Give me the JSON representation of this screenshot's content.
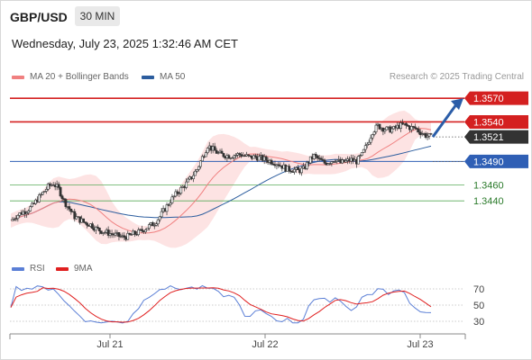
{
  "header": {
    "symbol": "GBP/USD",
    "timeframe": "30 MIN",
    "datetime": "Wednesday, July 23, 2025 1:32:46 AM CET",
    "credit": "Research © 2025 Trading Central"
  },
  "legend": {
    "ma20": "MA 20 + Bollinger Bands",
    "ma50": "MA 50",
    "ma20_color": "#f08080",
    "ma50_color": "#2c5d9e"
  },
  "rsi_legend": {
    "rsi": "RSI",
    "ma9": "9MA",
    "rsi_color": "#5b7fd6",
    "ma9_color": "#e02020"
  },
  "colors": {
    "resistance": "#d42020",
    "support": "#2f5fb5",
    "target_line": "#5aab5a",
    "target_text": "#2a7a2a",
    "current": "#333333",
    "arrow": "#2b5da8",
    "band_fill": "#fde0e0"
  },
  "chart_data": [
    {
      "type": "candlestick",
      "title": "",
      "x_tick_labels": [
        "Jul 21",
        "Jul 22",
        "Jul 23"
      ],
      "ylim": [
        1.3365,
        1.3585
      ],
      "levels": [
        {
          "value": 1.357,
          "label": "1.3570",
          "kind": "resistance"
        },
        {
          "value": 1.354,
          "label": "1.3540",
          "kind": "resistance"
        },
        {
          "value": 1.3521,
          "label": "1.3521",
          "kind": "current"
        },
        {
          "value": 1.349,
          "label": "1.3490",
          "kind": "support"
        },
        {
          "value": 1.346,
          "label": "1.3460",
          "kind": "target"
        },
        {
          "value": 1.344,
          "label": "1.3440",
          "kind": "target"
        }
      ],
      "close_path": [
        1.3415,
        1.3421,
        1.3425,
        1.3428,
        1.3433,
        1.3442,
        1.345,
        1.3458,
        1.3462,
        1.3455,
        1.344,
        1.343,
        1.342,
        1.3416,
        1.3412,
        1.341,
        1.3405,
        1.3402,
        1.34,
        1.3398,
        1.3396,
        1.3394,
        1.3395,
        1.3398,
        1.34,
        1.3404,
        1.3408,
        1.3412,
        1.342,
        1.343,
        1.344,
        1.3448,
        1.3455,
        1.3462,
        1.347,
        1.348,
        1.3495,
        1.351,
        1.3505,
        1.35,
        1.3498,
        1.3497,
        1.3498,
        1.3499,
        1.3497,
        1.3495,
        1.3496,
        1.3494,
        1.3492,
        1.349,
        1.3488,
        1.3484,
        1.348,
        1.348,
        1.3478,
        1.348,
        1.349,
        1.3497,
        1.3492,
        1.3488,
        1.349,
        1.3493,
        1.3488,
        1.349,
        1.3492,
        1.349,
        1.3498,
        1.3512,
        1.3528,
        1.3535,
        1.3532,
        1.353,
        1.3531,
        1.3535,
        1.3536,
        1.3533,
        1.3532,
        1.3527,
        1.3523,
        1.3521
      ],
      "ma20": {
        "name": "MA 20 + Bollinger Bands"
      },
      "ma50": {
        "name": "MA 50"
      }
    },
    {
      "type": "line",
      "title": "",
      "ylim": [
        20,
        80
      ],
      "y_ticks": [
        70,
        50,
        30
      ],
      "series": [
        {
          "name": "RSI"
        },
        {
          "name": "9MA"
        }
      ]
    }
  ]
}
